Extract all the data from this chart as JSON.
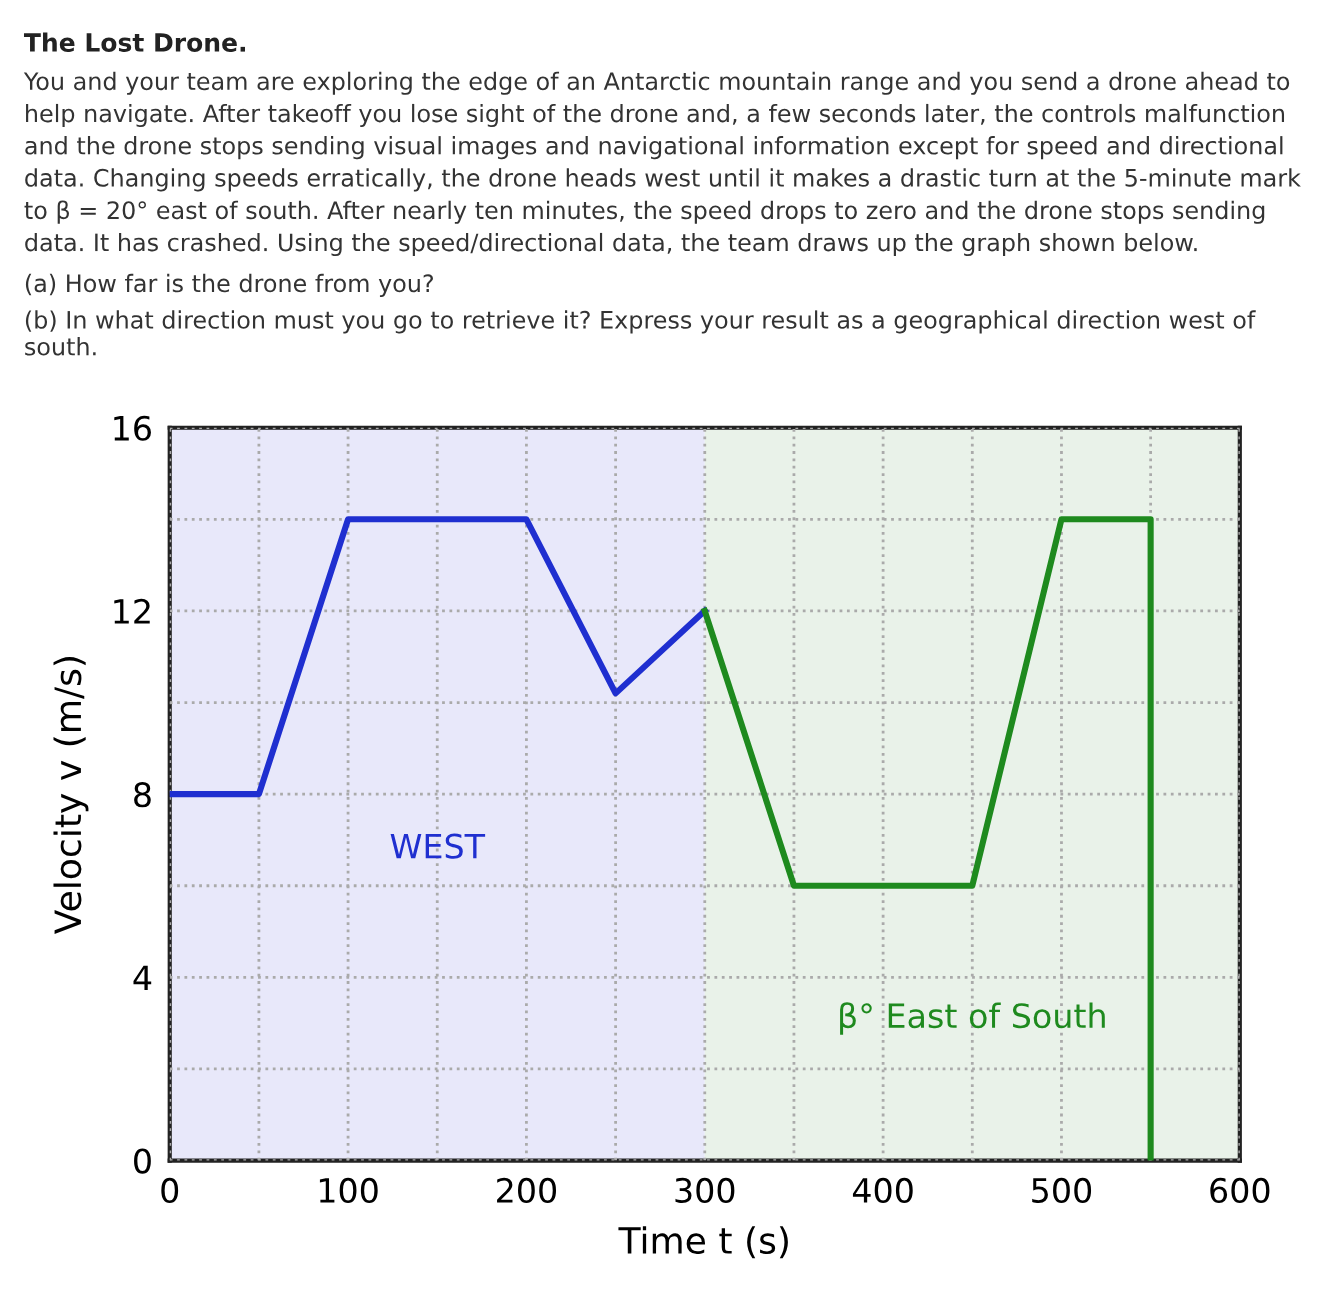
{
  "chart_data": {
    "type": "line",
    "title": "The Lost Drone.",
    "subtitle": "You and your team are exploring the edge of an Antarctic mountain range and you send a drone ahead to help navigate. After takeoff you lose sight of the drone and, a few seconds later, the controls malfunction and the drone stops sending visual images and navigational information except for speed and directional data. Changing speeds erratically, the drone heads west until it makes a drastic turn at the 5-minute mark to β = 20° east of south. After nearly ten minutes, the speed drops to zero and the drone stops sending data. It has crashed. Using the speed/directional data, the team draws up the graph shown below.",
    "annotations": [
      "(a) How far is the drone from you?",
      "(b) In what direction must you go to retrieve it? Express your result as a geographical direction west of south."
    ],
    "xlabel": "Time t (s)",
    "ylabel": "Velocity v (m/s)",
    "series": [
      {
        "color": "#1f2fd0",
        "x": [
          0,
          50,
          100,
          200,
          250,
          300
        ],
        "values": [
          8,
          8,
          14,
          14,
          10.2,
          12
        ]
      },
      {
        "color": "#1e8a1e",
        "x": [
          300,
          350,
          450,
          500,
          550,
          550
        ],
        "values": [
          12,
          6,
          6,
          14,
          14,
          0
        ]
      }
    ],
    "bands": [
      {
        "axis": "x",
        "from": 0,
        "to": 300,
        "label": "WEST",
        "color": "#e8e8fa"
      },
      {
        "axis": "x",
        "from": 300,
        "to": 600,
        "label": "β° East of South",
        "color": "#e9f2e9"
      }
    ],
    "xlim": [
      0,
      600
    ],
    "ylim": [
      0,
      16
    ],
    "xticks": [
      0,
      {
        "value": 50,
        "label": null
      },
      100,
      {
        "value": 150,
        "label": null
      },
      200,
      {
        "value": 250,
        "label": null
      },
      300,
      {
        "value": 350,
        "label": null
      },
      400,
      {
        "value": 450,
        "label": null
      },
      500,
      {
        "value": 550,
        "label": null
      },
      600
    ],
    "yticks": [
      0,
      {
        "value": 2,
        "label": null
      },
      4,
      {
        "value": 6,
        "label": null
      },
      8,
      {
        "value": 10,
        "label": null
      },
      12,
      {
        "value": 14,
        "label": null
      },
      16
    ],
    "grid": true,
    "line_style": "solid",
    "marker": "none",
    "legend": false
  }
}
